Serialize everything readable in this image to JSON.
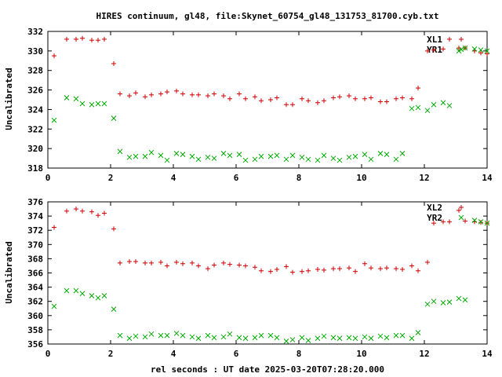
{
  "chart_data": {
    "title": "HIRES continuum, gl48, file:Skynet_60754_gl48_131753_81700.cyb.txt",
    "xlabel": "rel seconds : UT date 2025-03-20T07:28:20.000",
    "colors": {
      "XL": "#cc0000",
      "YR": "#00aa00",
      "frame": "#000000"
    },
    "panels": [
      {
        "type": "scatter",
        "ylabel": "Uncalibrated",
        "xlim": [
          0,
          14
        ],
        "ylim": [
          318,
          332
        ],
        "xticks": [
          "0",
          "2",
          "4",
          "6",
          "8",
          "10",
          "12",
          "14"
        ],
        "yticks": [
          "318",
          "320",
          "322",
          "324",
          "326",
          "328",
          "330",
          "332"
        ],
        "legend_position": "top-right",
        "series": [
          {
            "name": "XL1",
            "marker": "plus",
            "x": [
              0.2,
              0.6,
              0.9,
              1.1,
              1.4,
              1.6,
              1.8,
              2.1,
              2.3,
              2.6,
              2.8,
              3.1,
              3.3,
              3.6,
              3.8,
              4.1,
              4.3,
              4.6,
              4.8,
              5.1,
              5.3,
              5.6,
              5.8,
              6.1,
              6.3,
              6.6,
              6.8,
              7.1,
              7.3,
              7.6,
              7.8,
              8.1,
              8.3,
              8.6,
              8.8,
              9.1,
              9.3,
              9.6,
              9.8,
              10.1,
              10.3,
              10.6,
              10.8,
              11.1,
              11.3,
              11.6,
              11.8,
              12.1,
              12.3,
              12.6,
              12.8,
              13.1,
              13.3,
              13.6,
              13.8,
              14.0
            ],
            "y": [
              329.5,
              331.2,
              331.2,
              331.3,
              331.1,
              331.1,
              331.2,
              328.7,
              325.6,
              325.4,
              325.7,
              325.3,
              325.5,
              325.6,
              325.8,
              325.9,
              325.6,
              325.5,
              325.5,
              325.4,
              325.6,
              325.4,
              325.1,
              325.6,
              325.1,
              325.3,
              324.9,
              325.0,
              325.2,
              324.5,
              324.5,
              325.1,
              324.9,
              324.7,
              324.9,
              325.2,
              325.3,
              325.4,
              325.1,
              325.1,
              325.2,
              324.8,
              324.8,
              325.1,
              325.2,
              325.1,
              326.2,
              330.0,
              330.1,
              330.2,
              331.2,
              330.3,
              330.3,
              330.0,
              329.8,
              329.7
            ]
          },
          {
            "name": "YR1",
            "marker": "cross",
            "x": [
              0.2,
              0.6,
              0.9,
              1.1,
              1.4,
              1.6,
              1.8,
              2.1,
              2.3,
              2.6,
              2.8,
              3.1,
              3.3,
              3.6,
              3.8,
              4.1,
              4.3,
              4.6,
              4.8,
              5.1,
              5.3,
              5.6,
              5.8,
              6.1,
              6.3,
              6.6,
              6.8,
              7.1,
              7.3,
              7.6,
              7.8,
              8.1,
              8.3,
              8.6,
              8.8,
              9.1,
              9.3,
              9.6,
              9.8,
              10.1,
              10.3,
              10.6,
              10.8,
              11.1,
              11.3,
              11.6,
              11.8,
              12.1,
              12.3,
              12.6,
              12.8,
              13.1,
              13.3,
              13.6,
              13.8,
              14.0
            ],
            "y": [
              322.9,
              325.2,
              325.1,
              324.6,
              324.5,
              324.6,
              324.6,
              323.1,
              319.7,
              319.1,
              319.2,
              319.2,
              319.6,
              319.3,
              318.8,
              319.5,
              319.4,
              319.2,
              318.9,
              319.1,
              319.0,
              319.5,
              319.3,
              319.4,
              318.8,
              318.9,
              319.2,
              319.2,
              319.3,
              318.9,
              319.3,
              319.1,
              318.9,
              318.8,
              319.3,
              319.0,
              318.8,
              319.1,
              319.2,
              319.4,
              318.9,
              319.5,
              319.4,
              318.9,
              319.5,
              324.1,
              324.2,
              323.9,
              324.5,
              324.7,
              324.4,
              330.0,
              330.3,
              330.2,
              330.1,
              330.0
            ]
          }
        ]
      },
      {
        "type": "scatter",
        "ylabel": "Uncalibrated",
        "xlim": [
          0,
          14
        ],
        "ylim": [
          356,
          376
        ],
        "xticks": [
          "0",
          "2",
          "4",
          "6",
          "8",
          "10",
          "12",
          "14"
        ],
        "yticks": [
          "356",
          "358",
          "360",
          "362",
          "364",
          "366",
          "368",
          "370",
          "372",
          "374",
          "376"
        ],
        "legend_position": "top-right",
        "series": [
          {
            "name": "XL2",
            "marker": "plus",
            "x": [
              0.2,
              0.6,
              0.9,
              1.1,
              1.4,
              1.6,
              1.8,
              2.1,
              2.3,
              2.6,
              2.8,
              3.1,
              3.3,
              3.6,
              3.8,
              4.1,
              4.3,
              4.6,
              4.8,
              5.1,
              5.3,
              5.6,
              5.8,
              6.1,
              6.3,
              6.6,
              6.8,
              7.1,
              7.3,
              7.6,
              7.8,
              8.1,
              8.3,
              8.6,
              8.8,
              9.1,
              9.3,
              9.6,
              9.8,
              10.1,
              10.3,
              10.6,
              10.8,
              11.1,
              11.3,
              11.6,
              11.8,
              12.1,
              12.3,
              12.6,
              12.8,
              13.1,
              13.3,
              13.6,
              13.8,
              14.0
            ],
            "y": [
              372.4,
              374.7,
              375.0,
              374.7,
              374.6,
              374.1,
              374.4,
              372.2,
              367.4,
              367.6,
              367.6,
              367.4,
              367.4,
              367.5,
              367.0,
              367.5,
              367.3,
              367.4,
              367.0,
              366.6,
              367.1,
              367.4,
              367.2,
              367.1,
              367.0,
              366.8,
              366.3,
              366.2,
              366.5,
              366.9,
              366.1,
              366.2,
              366.3,
              366.5,
              366.4,
              366.6,
              366.6,
              366.7,
              366.2,
              367.3,
              366.7,
              366.6,
              366.7,
              366.6,
              366.5,
              367.0,
              366.3,
              367.5,
              373.0,
              373.2,
              373.2,
              374.8,
              373.3,
              373.2,
              373.1,
              373.0
            ]
          },
          {
            "name": "YR2",
            "marker": "cross",
            "x": [
              0.2,
              0.6,
              0.9,
              1.1,
              1.4,
              1.6,
              1.8,
              2.1,
              2.3,
              2.6,
              2.8,
              3.1,
              3.3,
              3.6,
              3.8,
              4.1,
              4.3,
              4.6,
              4.8,
              5.1,
              5.3,
              5.6,
              5.8,
              6.1,
              6.3,
              6.6,
              6.8,
              7.1,
              7.3,
              7.6,
              7.8,
              8.1,
              8.3,
              8.6,
              8.8,
              9.1,
              9.3,
              9.6,
              9.8,
              10.1,
              10.3,
              10.6,
              10.8,
              11.1,
              11.3,
              11.6,
              11.8,
              12.1,
              12.3,
              12.6,
              12.8,
              13.1,
              13.3,
              13.6,
              13.8,
              14.0
            ],
            "y": [
              361.3,
              363.5,
              363.5,
              363.1,
              362.8,
              362.5,
              362.8,
              360.9,
              357.2,
              356.8,
              357.1,
              357.0,
              357.4,
              357.2,
              357.2,
              357.5,
              357.2,
              357.0,
              356.8,
              357.2,
              356.9,
              357.0,
              357.4,
              356.9,
              356.8,
              356.9,
              357.2,
              357.2,
              356.9,
              356.4,
              356.6,
              356.9,
              356.5,
              356.8,
              357.1,
              356.9,
              356.8,
              356.9,
              356.8,
              357.0,
              356.8,
              357.1,
              356.9,
              357.2,
              357.2,
              356.8,
              357.6,
              361.6,
              362.0,
              361.8,
              361.9,
              362.4,
              362.2,
              373.4,
              373.2,
              373.0
            ]
          }
        ]
      }
    ]
  }
}
